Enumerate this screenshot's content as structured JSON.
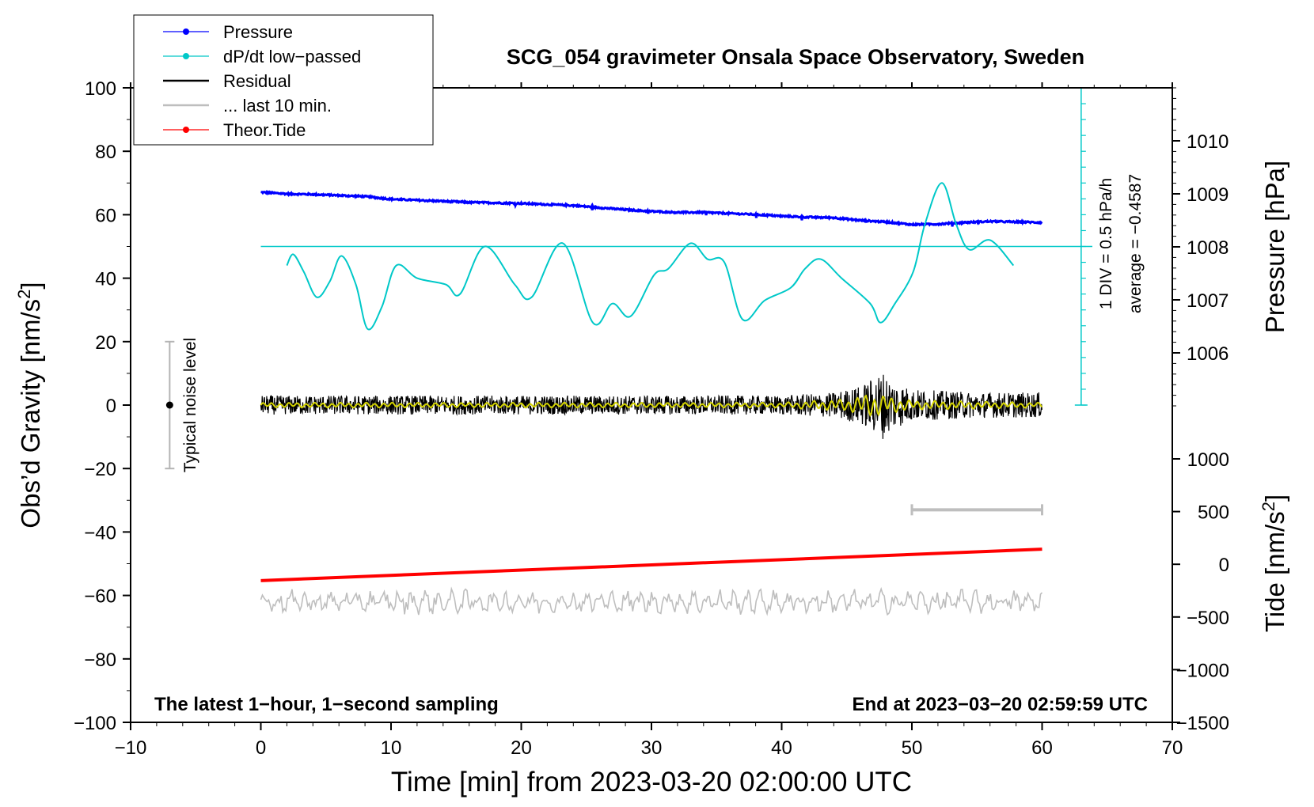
{
  "chart_data": {
    "type": "line",
    "title": "SCG_054 gravimeter Onsala Space Observatory, Sweden",
    "xlabel": "Time [min] from 2023-03-20 02:00:00 UTC",
    "xlim": [
      -10,
      70
    ],
    "xticks": [
      "−10",
      "0",
      "10",
      "20",
      "30",
      "40",
      "50",
      "60",
      "70"
    ],
    "x_tick_values": [
      -10,
      0,
      10,
      20,
      30,
      40,
      50,
      60,
      70
    ],
    "ylabel_left": "Obs’d Gravity [nm/s²]",
    "ylim_left": [
      -100,
      100
    ],
    "yticks_left": [
      "100",
      "80",
      "60",
      "40",
      "20",
      "0",
      "−20",
      "−40",
      "−60",
      "−80",
      "−100"
    ],
    "y_tick_values_left": [
      100,
      80,
      60,
      40,
      20,
      0,
      -20,
      -40,
      -60,
      -80,
      -100
    ],
    "ylabel_pressure": "Pressure [hPa]",
    "yticks_pressure": [
      "1010",
      "1009",
      "1008",
      "1007",
      "1006"
    ],
    "y_tick_values_pressure": [
      1010,
      1009,
      1008,
      1007,
      1006
    ],
    "ylabel_tide": "Tide [nm/s²]",
    "yticks_tide": [
      "1000",
      "500",
      "0",
      "−500",
      "−1000",
      "−1500"
    ],
    "y_tick_values_tide": [
      1000,
      500,
      0,
      -500,
      -1000,
      -1500
    ],
    "legend": {
      "position": "top-left",
      "entries": [
        {
          "label": "Pressure",
          "color": "#0000ff",
          "marker": true
        },
        {
          "label": "dP/dt low−passed",
          "color": "#00c8c8",
          "marker": true
        },
        {
          "label": "Residual",
          "color": "#000000",
          "marker": false
        },
        {
          "label": "... last 10 min.",
          "color": "#bebebe",
          "marker": false
        },
        {
          "label": "Theor.Tide",
          "color": "#ff0000",
          "marker": true
        }
      ]
    },
    "annotations": {
      "noise_level": "Typical noise level",
      "dpdt_scale": "1 DIV = 0.5 hPa/h",
      "dpdt_average": "average = −0.4587",
      "bottom_left": "The latest 1−hour, 1−second sampling",
      "bottom_right": "End at 2023−03−20 02:59:59 UTC"
    },
    "noise_level_range": [
      -20,
      20
    ],
    "noise_level_x": -7,
    "last10_bar_x": [
      50,
      60
    ],
    "last10_bar_y": -33,
    "dpdt_scale_range": [
      0,
      100
    ],
    "dpdt_zero_line": 50,
    "series": [
      {
        "name": "Pressure",
        "axis": "pressure_hPa",
        "color": "#0000ff",
        "x": [
          0,
          2,
          4,
          6,
          8,
          10,
          12,
          14,
          16,
          18,
          20,
          22,
          24,
          26,
          28,
          30,
          32,
          34,
          36,
          38,
          40,
          42,
          44,
          46,
          48,
          50,
          52,
          54,
          56,
          58,
          60
        ],
        "values": [
          1009.03,
          1009.0,
          1008.99,
          1008.97,
          1008.95,
          1008.9,
          1008.88,
          1008.86,
          1008.84,
          1008.83,
          1008.82,
          1008.8,
          1008.78,
          1008.74,
          1008.7,
          1008.67,
          1008.65,
          1008.65,
          1008.63,
          1008.61,
          1008.58,
          1008.56,
          1008.55,
          1008.5,
          1008.47,
          1008.42,
          1008.43,
          1008.46,
          1008.48,
          1008.47,
          1008.46
        ]
      },
      {
        "name": "dP/dt low-passed",
        "axis": "gravity_nm_s2",
        "color": "#00c8c8",
        "x": [
          2,
          2.5,
          3.3,
          4.3,
          5.3,
          6.2,
          7.3,
          8.2,
          9.3,
          10.4,
          12,
          14.2,
          15.3,
          17.2,
          19.5,
          20.8,
          23.2,
          25.5,
          27,
          28.4,
          30.2,
          31.3,
          33,
          34.3,
          35.6,
          37,
          38.7,
          40.7,
          41.8,
          43,
          44.6,
          46.8,
          47.6,
          48.7,
          50.1,
          51,
          52.3,
          53.4,
          54.4,
          56,
          57.8
        ],
        "values": [
          44,
          47.5,
          42,
          34,
          39,
          47,
          38,
          24,
          31,
          44,
          40,
          38,
          35,
          50,
          38,
          34,
          51,
          26,
          32,
          28,
          41,
          43,
          51,
          46,
          45,
          27,
          33,
          37,
          43,
          46,
          40,
          32,
          26,
          32,
          42,
          57,
          70,
          57,
          49,
          52,
          44
        ]
      },
      {
        "name": "Residual",
        "axis": "gravity_nm_s2",
        "color": "#000000",
        "x": [
          0,
          10,
          20,
          30,
          40,
          44,
          46,
          47.2,
          47.7,
          48.5,
          50,
          55,
          60
        ],
        "values": [
          0,
          0,
          0,
          0,
          0,
          0,
          0,
          0,
          0,
          0,
          0,
          0,
          0
        ],
        "envelope": [
          3,
          3,
          3,
          3,
          3,
          4,
          6,
          9,
          11,
          8,
          5,
          4,
          4
        ]
      },
      {
        "name": "Residual smoothed",
        "axis": "gravity_nm_s2",
        "color": "#d4d400",
        "x": [
          0,
          20,
          40,
          45,
          47,
          48,
          50,
          60
        ],
        "values": [
          0,
          0,
          0,
          0,
          0,
          0,
          0,
          0
        ],
        "envelope": [
          0.8,
          0.8,
          0.8,
          2,
          4,
          3,
          1.5,
          0.8
        ]
      },
      {
        "name": "... last 10 min.",
        "axis": "gravity_nm_s2",
        "color": "#bebebe",
        "x": [
          0,
          60
        ],
        "values": [
          -62,
          -62
        ],
        "envelope": [
          4,
          4
        ]
      },
      {
        "name": "Theor.Tide",
        "axis": "tide_nm_s2",
        "color": "#ff0000",
        "x": [
          0,
          60
        ],
        "values": [
          -155,
          143
        ]
      }
    ]
  }
}
